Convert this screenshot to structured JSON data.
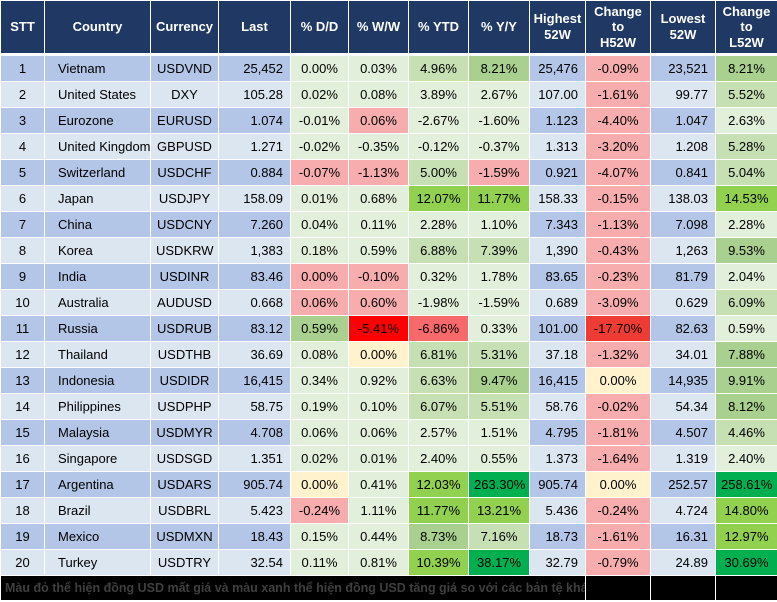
{
  "header": {
    "columns": [
      "STT",
      "Country",
      "Currency",
      "Last",
      "% D/D",
      "% W/W",
      "% YTD",
      "% Y/Y",
      "Highest\n52W",
      "Change\nto\nH52W",
      "Lowest\n52W",
      "Change\nto\nL52W"
    ]
  },
  "palette": {
    "g1": "#E2EFDA",
    "g2": "#C6E0B4",
    "g3": "#A9D08E",
    "g4": "#92D050",
    "g5": "#00B050",
    "r1": "#F7ADAD",
    "r2": "#F8696B",
    "r3": "#FF0000",
    "r4": "#EE3B33",
    "y": "#FFF2CC",
    "row_odd": "#B4C6E7",
    "row_even": "#DCE6F1",
    "header_bg": "#1F3864",
    "header_text": "#FFFFFF",
    "gridline": "#FFFFFF",
    "footer_bg": "#000000",
    "footer_text": "#3F3F3F"
  },
  "chart_data": {
    "type": "table",
    "columns": [
      "STT",
      "Country",
      "Currency",
      "Last",
      "% D/D",
      "% W/W",
      "% YTD",
      "% Y/Y",
      "Highest 52W",
      "Change to H52W",
      "Lowest 52W",
      "Change to L52W"
    ],
    "rows": [
      [
        "1",
        "Vietnam",
        "USDVND",
        "25,452",
        "0.00%",
        "0.03%",
        "4.96%",
        "8.21%",
        "25,476",
        "-0.09%",
        "23,521",
        "8.21%"
      ],
      [
        "2",
        "United States",
        "DXY",
        "105.28",
        "0.02%",
        "0.08%",
        "3.89%",
        "2.67%",
        "107.00",
        "-1.61%",
        "99.77",
        "5.52%"
      ],
      [
        "3",
        "Eurozone",
        "EURUSD",
        "1.074",
        "-0.01%",
        "0.06%",
        "-2.67%",
        "-1.60%",
        "1.123",
        "-4.40%",
        "1.047",
        "2.63%"
      ],
      [
        "4",
        "United Kingdom",
        "GBPUSD",
        "1.271",
        "-0.02%",
        "-0.35%",
        "-0.12%",
        "-0.37%",
        "1.313",
        "-3.20%",
        "1.208",
        "5.28%"
      ],
      [
        "5",
        "Switzerland",
        "USDCHF",
        "0.884",
        "-0.07%",
        "-1.13%",
        "5.00%",
        "-1.59%",
        "0.921",
        "-4.07%",
        "0.841",
        "5.04%"
      ],
      [
        "6",
        "Japan",
        "USDJPY",
        "158.09",
        "0.01%",
        "0.68%",
        "12.07%",
        "11.77%",
        "158.33",
        "-0.15%",
        "138.03",
        "14.53%"
      ],
      [
        "7",
        "China",
        "USDCNY",
        "7.260",
        "0.04%",
        "0.11%",
        "2.28%",
        "1.10%",
        "7.343",
        "-1.13%",
        "7.098",
        "2.28%"
      ],
      [
        "8",
        "Korea",
        "USDKRW",
        "1,383",
        "0.18%",
        "0.59%",
        "6.88%",
        "7.39%",
        "1,390",
        "-0.43%",
        "1,263",
        "9.53%"
      ],
      [
        "9",
        "India",
        "USDINR",
        "83.46",
        "0.00%",
        "-0.10%",
        "0.32%",
        "1.78%",
        "83.65",
        "-0.23%",
        "81.79",
        "2.04%"
      ],
      [
        "10",
        "Australia",
        "AUDUSD",
        "0.668",
        "0.06%",
        "0.60%",
        "-1.98%",
        "-1.59%",
        "0.689",
        "-3.09%",
        "0.629",
        "6.09%"
      ],
      [
        "11",
        "Russia",
        "USDRUB",
        "83.12",
        "0.59%",
        "-5.41%",
        "-6.86%",
        "0.33%",
        "101.00",
        "-17.70%",
        "82.63",
        "0.59%"
      ],
      [
        "12",
        "Thailand",
        "USDTHB",
        "36.69",
        "0.08%",
        "0.00%",
        "6.81%",
        "5.31%",
        "37.18",
        "-1.32%",
        "34.01",
        "7.88%"
      ],
      [
        "13",
        "Indonesia",
        "USDIDR",
        "16,415",
        "0.34%",
        "0.92%",
        "6.63%",
        "9.47%",
        "16,415",
        "0.00%",
        "14,935",
        "9.91%"
      ],
      [
        "14",
        "Philippines",
        "USDPHP",
        "58.75",
        "0.19%",
        "0.10%",
        "6.07%",
        "5.51%",
        "58.76",
        "-0.02%",
        "54.34",
        "8.12%"
      ],
      [
        "15",
        "Malaysia",
        "USDMYR",
        "4.708",
        "0.06%",
        "0.06%",
        "2.57%",
        "1.51%",
        "4.795",
        "-1.81%",
        "4.507",
        "4.46%"
      ],
      [
        "16",
        "Singapore",
        "USDSGD",
        "1.351",
        "0.02%",
        "0.01%",
        "2.40%",
        "0.55%",
        "1.373",
        "-1.64%",
        "1.319",
        "2.40%"
      ],
      [
        "17",
        "Argentina",
        "USDARS",
        "905.74",
        "0.00%",
        "0.41%",
        "12.03%",
        "263.30%",
        "905.74",
        "0.00%",
        "252.57",
        "258.61%"
      ],
      [
        "18",
        "Brazil",
        "USDBRL",
        "5.423",
        "-0.24%",
        "1.11%",
        "11.77%",
        "13.21%",
        "5.436",
        "-0.24%",
        "4.724",
        "14.80%"
      ],
      [
        "19",
        "Mexico",
        "USDMXN",
        "18.43",
        "0.15%",
        "0.44%",
        "8.73%",
        "7.16%",
        "18.73",
        "-1.61%",
        "16.31",
        "12.97%"
      ],
      [
        "20",
        "Turkey",
        "USDTRY",
        "32.54",
        "0.11%",
        "0.81%",
        "10.39%",
        "38.17%",
        "32.79",
        "-0.79%",
        "24.89",
        "30.69%"
      ]
    ]
  },
  "cell_colors": [
    [
      "g1",
      "g1",
      "g2",
      "g3",
      "r1",
      "g3"
    ],
    [
      "g1",
      "g1",
      "g1",
      "g1",
      "r1",
      "g2"
    ],
    [
      "g1",
      "r1",
      "g1",
      "g1",
      "r1",
      "g1"
    ],
    [
      "g1",
      "g1",
      "g1",
      "g1",
      "r1",
      "g2"
    ],
    [
      "r1",
      "r1",
      "g2",
      "r1",
      "r1",
      "g2"
    ],
    [
      "g1",
      "g1",
      "g4",
      "g4",
      "r1",
      "g4"
    ],
    [
      "g1",
      "g1",
      "g1",
      "g1",
      "r1",
      "g1"
    ],
    [
      "g1",
      "g1",
      "g2",
      "g2",
      "r1",
      "g3"
    ],
    [
      "r1",
      "r1",
      "g1",
      "g1",
      "r1",
      "g1"
    ],
    [
      "r1",
      "r1",
      "g1",
      "g1",
      "r1",
      "g2"
    ],
    [
      "g3",
      "r3",
      "r2",
      "g1",
      "r4",
      "g1"
    ],
    [
      "g1",
      "y",
      "g2",
      "g2",
      "r1",
      "g3"
    ],
    [
      "g1",
      "g1",
      "g2",
      "g3",
      "y",
      "g3"
    ],
    [
      "g1",
      "g1",
      "g2",
      "g2",
      "r1",
      "g3"
    ],
    [
      "g1",
      "g1",
      "g1",
      "g1",
      "r1",
      "g2"
    ],
    [
      "g1",
      "g1",
      "g1",
      "g1",
      "r1",
      "g1"
    ],
    [
      "y",
      "g1",
      "g4",
      "g5",
      "y",
      "g5"
    ],
    [
      "r1",
      "g1",
      "g4",
      "g4",
      "r1",
      "g4"
    ],
    [
      "g1",
      "g1",
      "g3",
      "g2",
      "r1",
      "g4"
    ],
    [
      "g1",
      "g1",
      "g4",
      "g5",
      "r1",
      "g5"
    ]
  ],
  "footer": {
    "note": "Màu đỏ thể hiện đồng USD mất giá và màu xanh thể hiện đồng USD tăng giá so với các bản tệ khác."
  }
}
